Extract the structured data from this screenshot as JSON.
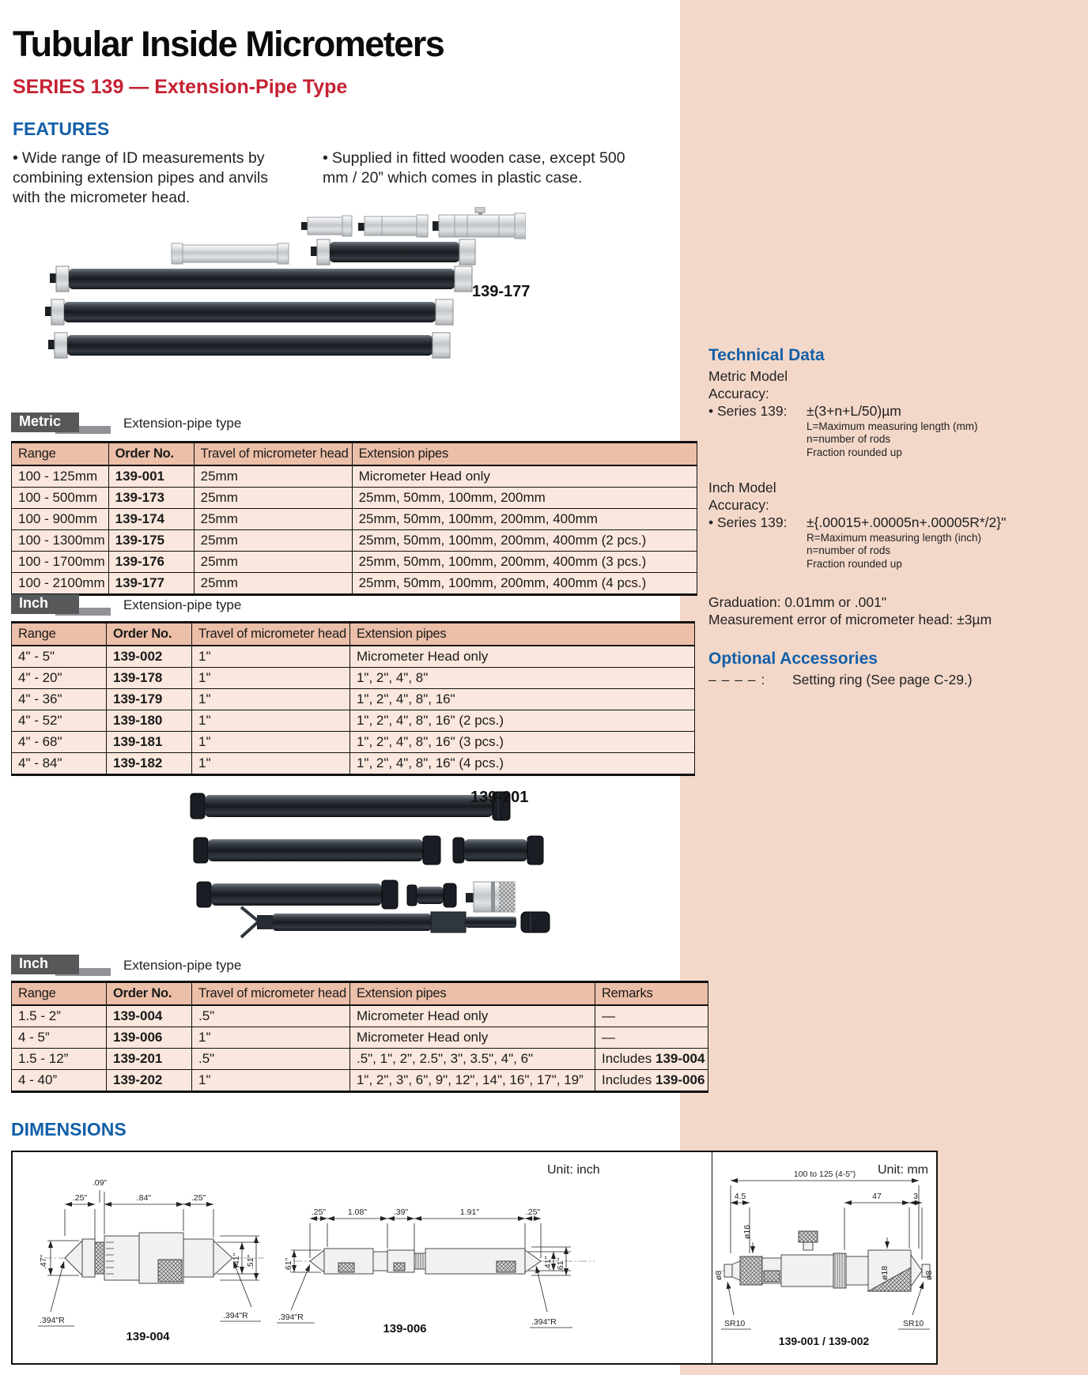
{
  "page": {
    "title": "Tubular Inside Micrometers",
    "series": "SERIES 139 — Extension-Pipe Type",
    "features_heading": "FEATURES",
    "features": [
      "Wide range of ID measurements by combining extension pipes and anvils with the micrometer head.",
      "Supplied in fitted wooden case, except 500 mm / 20” which comes in plastic case."
    ]
  },
  "photos": {
    "set1_label": "139-177",
    "set2_label": "139-201"
  },
  "tables": [
    {
      "tab": "Metric",
      "caption": "Extension-pipe type",
      "headers": [
        "Range",
        "Order No.",
        "Travel of micrometer head",
        "Extension pipes"
      ],
      "rows": [
        [
          "100 - 125mm",
          "139-001",
          "25mm",
          "Micrometer Head only"
        ],
        [
          "100 - 500mm",
          "139-173",
          "25mm",
          "25mm, 50mm, 100mm, 200mm"
        ],
        [
          "100 - 900mm",
          "139-174",
          "25mm",
          "25mm, 50mm, 100mm, 200mm, 400mm"
        ],
        [
          "100 - 1300mm",
          "139-175",
          "25mm",
          "25mm, 50mm, 100mm, 200mm, 400mm (2 pcs.)"
        ],
        [
          "100 - 1700mm",
          "139-176",
          "25mm",
          "25mm, 50mm, 100mm, 200mm, 400mm (3 pcs.)"
        ],
        [
          "100 - 2100mm",
          "139-177",
          "25mm",
          "25mm, 50mm, 100mm, 200mm, 400mm (4 pcs.)"
        ]
      ]
    },
    {
      "tab": "Inch",
      "caption": "Extension-pipe type",
      "headers": [
        "Range",
        "Order No.",
        "Travel of micrometer head",
        "Extension pipes"
      ],
      "rows": [
        [
          "4\" - 5\"",
          "139-002",
          "1\"",
          "Micrometer Head only"
        ],
        [
          "4\" - 20\"",
          "139-178",
          "1\"",
          "1\", 2\", 4\", 8\""
        ],
        [
          "4\" - 36\"",
          "139-179",
          "1\"",
          "1\", 2\", 4\", 8\", 16\""
        ],
        [
          "4\" - 52\"",
          "139-180",
          "1\"",
          "1\", 2\", 4\", 8\", 16\" (2 pcs.)"
        ],
        [
          "4\" - 68\"",
          "139-181",
          "1\"",
          "1\", 2\", 4\", 8\", 16\" (3 pcs.)"
        ],
        [
          "4\" - 84\"",
          "139-182",
          "1\"",
          "1\", 2\", 4\", 8\", 16\" (4 pcs.)"
        ]
      ]
    },
    {
      "tab": "Inch",
      "caption": "Extension-pipe type",
      "headers": [
        "Range",
        "Order No.",
        "Travel of micrometer head",
        "Extension pipes",
        "Remarks"
      ],
      "rows": [
        [
          "1.5 - 2”",
          "139-004",
          ".5\"",
          "Micrometer Head only",
          "—"
        ],
        [
          "4 - 5”",
          "139-006",
          "1\"",
          "Micrometer Head only",
          "—"
        ],
        [
          "1.5 - 12”",
          "139-201",
          ".5\"",
          ".5\", 1\", 2\", 2.5\", 3\", 3.5\", 4\", 6\"",
          "Includes 139-004"
        ],
        [
          "4 - 40”",
          "139-202",
          "1\"",
          "1\", 2\", 3\", 6\", 9\", 12\", 14\", 16\", 17\", 19”",
          "Includes 139-006"
        ]
      ]
    }
  ],
  "technical": {
    "heading": "Technical Data",
    "metric_model": "Metric Model",
    "accuracy_label": "Accuracy:",
    "series_label": "• Series 139:",
    "metric_accuracy": "±(3+n+L/50)µm",
    "metric_notes": [
      "L=Maximum measuring length (mm)",
      "n=number of rods",
      "Fraction rounded up"
    ],
    "inch_model": "Inch Model",
    "inch_accuracy": "±{.00015+.00005n+.00005R*/2}\"",
    "inch_notes": [
      "R=Maximum measuring length (inch)",
      "n=number of rods",
      "Fraction rounded up"
    ],
    "graduation": "Graduation:  0.01mm or .001\"",
    "head_error": "Measurement error of micrometer head: ±3µm"
  },
  "accessories": {
    "heading": "Optional Accessories",
    "symbol": "– – – – :",
    "text": "Setting ring (See page C-29.)"
  },
  "dimensions": {
    "heading": "DIMENSIONS",
    "unit_inch": "Unit: inch",
    "unit_mm": "Unit: mm",
    "d004": {
      "caption": "139-004",
      "top": [
        ".25\"",
        ".09\"",
        ".84\"",
        ".25\""
      ],
      "left": ".47\"",
      "right": [
        ".41\"",
        ".51\""
      ],
      "radius_left": ".394\"R",
      "radius_right": ".394\"R"
    },
    "d006": {
      "caption": "139-006",
      "top": [
        ".25\"",
        "1.08\"",
        ".39\"",
        "1.91\"",
        ".25\""
      ],
      "left": ".61\"",
      "right": [
        ".41\"",
        ".61\""
      ],
      "radius_left": ".394\"R",
      "radius_right": ".394\"R"
    },
    "d001": {
      "caption": "139-001 / 139-002",
      "overall": "100 to 125 (4-5”)",
      "dims": [
        "4.5",
        "47",
        "3"
      ],
      "dia": [
        "ø8",
        "ø16",
        "ø18",
        "ø8"
      ],
      "sr_left": "SR10",
      "sr_right": "SR10"
    }
  }
}
